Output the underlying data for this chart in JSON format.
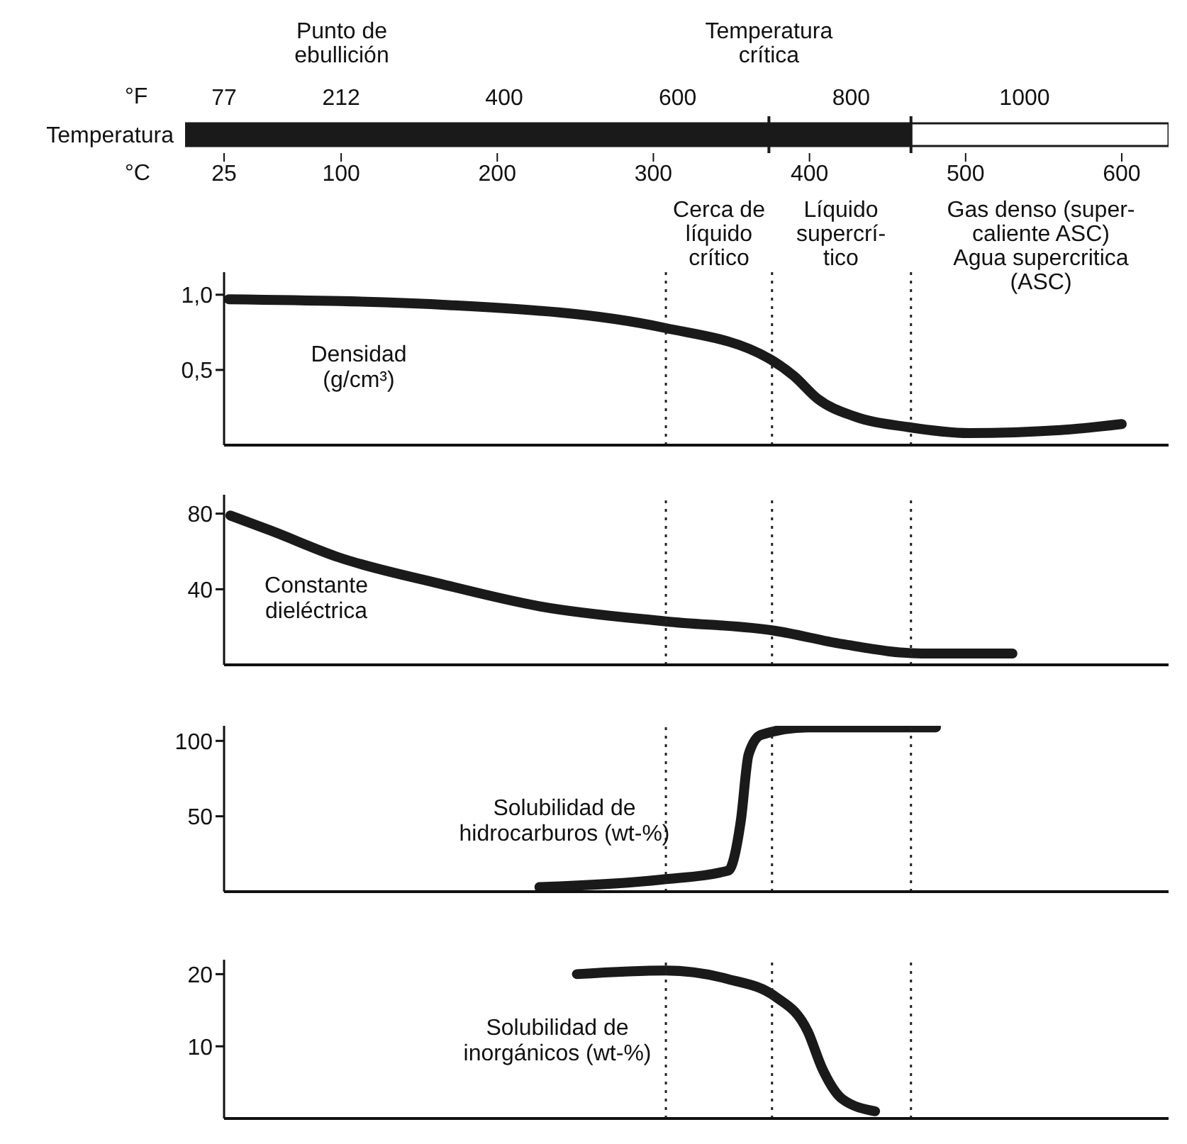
{
  "chart_data": [
    {
      "type": "bar",
      "orientation": "horizontal",
      "stacked": true,
      "categories": [
        "Temperatura"
      ],
      "series": [
        {
          "color": "#1a1a1a",
          "values": [
            465
          ]
        },
        {
          "color": "#ffffff",
          "values": [
            165
          ]
        }
      ],
      "xlim": [
        0,
        630
      ],
      "xticks": [
        25,
        100,
        200,
        300,
        400,
        500,
        600
      ],
      "xlabel": "°C",
      "x2lim": [
        32,
        1166
      ],
      "x2ticks": [
        77,
        212,
        400,
        600,
        800,
        1000
      ],
      "x2label": "°F",
      "ref_lines": [
        {
          "axis": "x",
          "value": 374,
          "label": "Temperatura\ncrítica",
          "color": "#1a1a1a"
        },
        {
          "axis": "x",
          "value": 465,
          "color": "#1a1a1a"
        }
      ],
      "annotations": [
        "Punto de\nebullición"
      ]
    },
    {
      "type": "line",
      "x": [
        28,
        171,
        307,
        375,
        390,
        405,
        429,
        463,
        502,
        561,
        600
      ],
      "values": [
        0.97,
        0.93,
        0.78,
        0.57,
        0.46,
        0.31,
        0.19,
        0.12,
        0.08,
        0.1,
        0.14
      ],
      "color": "#1a1a1a",
      "xlim": [
        25,
        630
      ],
      "xticks": [
        100,
        200,
        300,
        400,
        500,
        600
      ],
      "ylim": [
        0,
        1.15
      ],
      "yticks": [
        {
          "value": 1,
          "label": "1,0"
        },
        {
          "value": 0.5,
          "label": "0,5"
        }
      ],
      "ylabel": "Densidad\n(g/cm³)",
      "tick_labels": "y",
      "ref_lines": [
        {
          "axis": "x",
          "value": 308,
          "line_style": "dotted"
        },
        {
          "axis": "x",
          "value": 376,
          "line_style": "dotted"
        },
        {
          "axis": "x",
          "value": 465,
          "line_style": "dotted"
        }
      ],
      "annotations": [
        "Cerca de\nlíquido\ncrítico",
        "Líquido\nsupercrí-\ntico",
        "Gas denso (super-\ncaliente ASC)\nAgua supercritica\n(ASC)"
      ]
    },
    {
      "type": "line",
      "x": [
        29,
        55,
        98,
        163,
        227,
        308,
        378,
        421,
        472,
        530
      ],
      "values": [
        79,
        71,
        57,
        43,
        31,
        23,
        18,
        11,
        6,
        6
      ],
      "color": "#1a1a1a",
      "xlim": [
        25,
        630
      ],
      "xticks": [
        100,
        200,
        300,
        400,
        500,
        600
      ],
      "ylim": [
        0,
        90
      ],
      "yticks": [
        80,
        40
      ],
      "ylabel": "Constante\ndieléctrica",
      "tick_labels": "y",
      "ref_lines": [
        {
          "axis": "x",
          "value": 308,
          "line_style": "dotted"
        },
        {
          "axis": "x",
          "value": 376,
          "line_style": "dotted"
        },
        {
          "axis": "x",
          "value": 465,
          "line_style": "dotted"
        }
      ]
    },
    {
      "type": "line",
      "x": [
        227,
        305,
        348,
        356,
        361,
        369,
        399,
        481
      ],
      "values": [
        3,
        8,
        14,
        47,
        91,
        104,
        109,
        109
      ],
      "color": "#1a1a1a",
      "xlim": [
        25,
        630
      ],
      "xticks": [
        100,
        200,
        300,
        400,
        500,
        600
      ],
      "ylim": [
        0,
        110
      ],
      "yticks": [
        100,
        50
      ],
      "ylabel": "Solubilidad de\nhidrocarburos (wt-%)",
      "tick_labels": "y",
      "ref_lines": [
        {
          "axis": "x",
          "value": 308,
          "line_style": "dotted"
        },
        {
          "axis": "x",
          "value": 376,
          "line_style": "dotted"
        },
        {
          "axis": "x",
          "value": 465,
          "line_style": "dotted"
        }
      ]
    },
    {
      "type": "line",
      "x": [
        251,
        308,
        348,
        378,
        399,
        408,
        421,
        442
      ],
      "values": [
        20,
        20.5,
        19.3,
        16.9,
        12,
        7,
        2.7,
        1
      ],
      "color": "#1a1a1a",
      "xlim": [
        25,
        630
      ],
      "xticks": [
        100,
        200,
        300,
        400,
        500,
        600
      ],
      "ylim": [
        0,
        22
      ],
      "yticks": [
        20,
        10
      ],
      "ylabel": "Solubilidad de\ninorgánicos (wt-%)",
      "tick_labels": "y",
      "ref_lines": [
        {
          "axis": "x",
          "value": 308,
          "line_style": "dotted"
        },
        {
          "axis": "x",
          "value": 376,
          "line_style": "dotted"
        },
        {
          "axis": "x",
          "value": 465,
          "line_style": "dotted"
        }
      ]
    }
  ]
}
